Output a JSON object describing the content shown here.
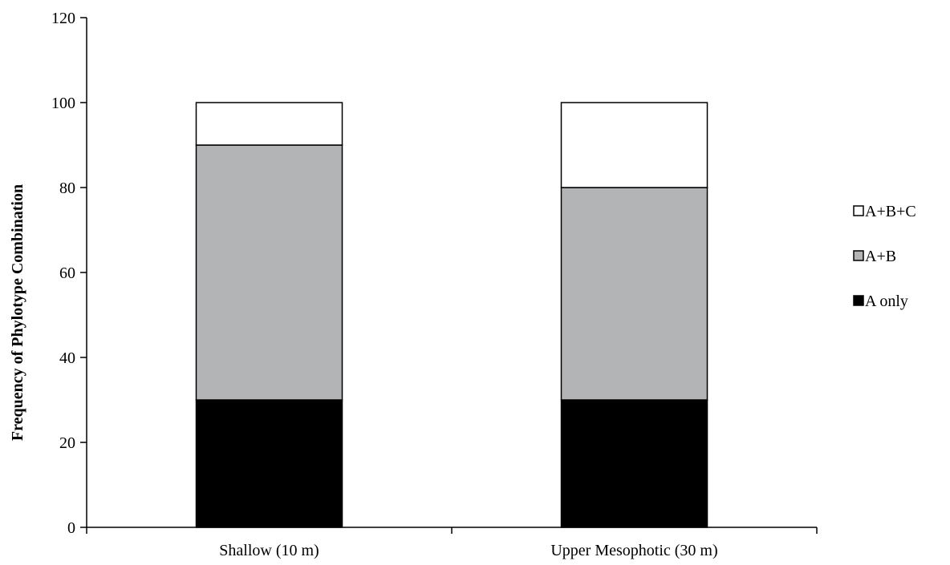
{
  "chart_data": {
    "type": "bar",
    "stacked": true,
    "categories": [
      "Shallow (10 m)",
      "Upper Mesophotic (30 m)"
    ],
    "series": [
      {
        "name": "A only",
        "values": [
          30,
          30
        ],
        "color": "#000000"
      },
      {
        "name": "A+B",
        "values": [
          60,
          50
        ],
        "color": "#b3b4b6"
      },
      {
        "name": "A+B+C",
        "values": [
          10,
          20
        ],
        "color": "#ffffff"
      }
    ],
    "ylabel": "Frequency of Phylotype Combination",
    "xlabel": "",
    "ylim": [
      0,
      120
    ],
    "yticks": [
      0,
      20,
      40,
      60,
      80,
      100,
      120
    ],
    "grid": false,
    "legend_position": "right",
    "legend_order": [
      "A+B+C",
      "A+B",
      "A only"
    ]
  }
}
